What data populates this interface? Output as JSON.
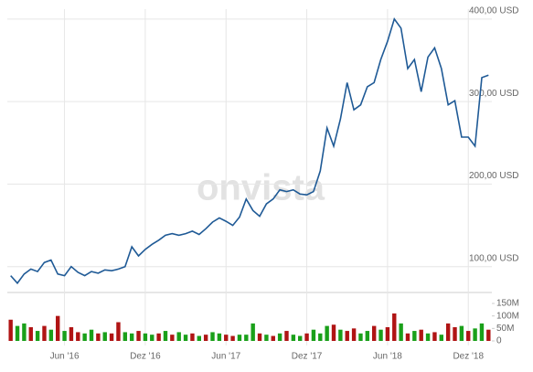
{
  "watermark": "onvista",
  "chart_data": [
    {
      "type": "line",
      "name": "price",
      "categories": [
        null,
        null,
        null,
        null,
        null,
        null,
        null,
        null,
        "Jun '16",
        null,
        null,
        null,
        null,
        null,
        null,
        null,
        null,
        null,
        null,
        null,
        "Dez '16",
        null,
        null,
        null,
        null,
        null,
        null,
        null,
        null,
        null,
        null,
        null,
        "Jun '17",
        null,
        null,
        null,
        null,
        null,
        null,
        null,
        null,
        null,
        null,
        null,
        "Dez '17",
        null,
        null,
        null,
        null,
        null,
        null,
        null,
        null,
        null,
        null,
        null,
        "Jun '18",
        null,
        null,
        null,
        null,
        null,
        null,
        null,
        null,
        null,
        null,
        null,
        "Dez '18",
        null,
        null,
        null
      ],
      "values": [
        89,
        80,
        91,
        97,
        94,
        105,
        108,
        91,
        89,
        100,
        93,
        89,
        94,
        92,
        96,
        95,
        97,
        100,
        124,
        113,
        121,
        127,
        132,
        138,
        140,
        138,
        140,
        143,
        139,
        146,
        154,
        159,
        155,
        150,
        160,
        182,
        168,
        161,
        176,
        182,
        193,
        191,
        193,
        188,
        187,
        191,
        216,
        268,
        246,
        279,
        323,
        290,
        296,
        318,
        323,
        351,
        373,
        400,
        389,
        340,
        351,
        312,
        354,
        365,
        340,
        296,
        301,
        257,
        257,
        246,
        329,
        332
      ],
      "color": "#1f5a96",
      "ylim": [
        72,
        412
      ],
      "yticks": [
        {
          "value": 100,
          "label": "100,00 USD"
        },
        {
          "value": 200,
          "label": "200,00 USD"
        },
        {
          "value": 300,
          "label": "300,00 USD"
        },
        {
          "value": 400,
          "label": "400,00 USD"
        }
      ],
      "grid": true
    },
    {
      "type": "bar",
      "name": "volume",
      "values": [
        85,
        60,
        70,
        55,
        40,
        60,
        45,
        100,
        40,
        55,
        35,
        30,
        45,
        30,
        35,
        30,
        75,
        35,
        30,
        40,
        30,
        25,
        30,
        40,
        25,
        35,
        25,
        30,
        20,
        25,
        35,
        30,
        25,
        20,
        25,
        25,
        70,
        30,
        25,
        20,
        30,
        40,
        25,
        20,
        30,
        45,
        30,
        60,
        65,
        45,
        40,
        50,
        30,
        40,
        60,
        45,
        55,
        110,
        70,
        30,
        40,
        45,
        30,
        35,
        25,
        70,
        55,
        60,
        40,
        50,
        70,
        45
      ],
      "colors": [
        "#b01414",
        "#1aa01a",
        "#1aa01a",
        "#b01414",
        "#1aa01a",
        "#b01414",
        "#1aa01a",
        "#b01414",
        "#1aa01a",
        "#b01414",
        "#b01414",
        "#1aa01a",
        "#1aa01a",
        "#b01414",
        "#1aa01a",
        "#b01414",
        "#b01414",
        "#1aa01a",
        "#1aa01a",
        "#b01414",
        "#1aa01a",
        "#1aa01a",
        "#b01414",
        "#1aa01a",
        "#b01414",
        "#1aa01a",
        "#1aa01a",
        "#b01414",
        "#1aa01a",
        "#b01414",
        "#1aa01a",
        "#1aa01a",
        "#b01414",
        "#b01414",
        "#1aa01a",
        "#1aa01a",
        "#1aa01a",
        "#b01414",
        "#1aa01a",
        "#b01414",
        "#1aa01a",
        "#b01414",
        "#1aa01a",
        "#1aa01a",
        "#b01414",
        "#1aa01a",
        "#1aa01a",
        "#1aa01a",
        "#b01414",
        "#1aa01a",
        "#b01414",
        "#b01414",
        "#1aa01a",
        "#1aa01a",
        "#b01414",
        "#1aa01a",
        "#b01414",
        "#b01414",
        "#1aa01a",
        "#b01414",
        "#1aa01a",
        "#b01414",
        "#1aa01a",
        "#b01414",
        "#1aa01a",
        "#b01414",
        "#b01414",
        "#1aa01a",
        "#b01414",
        "#1aa01a",
        "#1aa01a",
        "#b01414"
      ],
      "ylim": [
        0,
        150
      ],
      "yticks": [
        0,
        {
          "value": 50,
          "label": "50M"
        },
        {
          "value": 100,
          "label": "100M"
        },
        {
          "value": 150,
          "label": "150M"
        }
      ]
    }
  ]
}
